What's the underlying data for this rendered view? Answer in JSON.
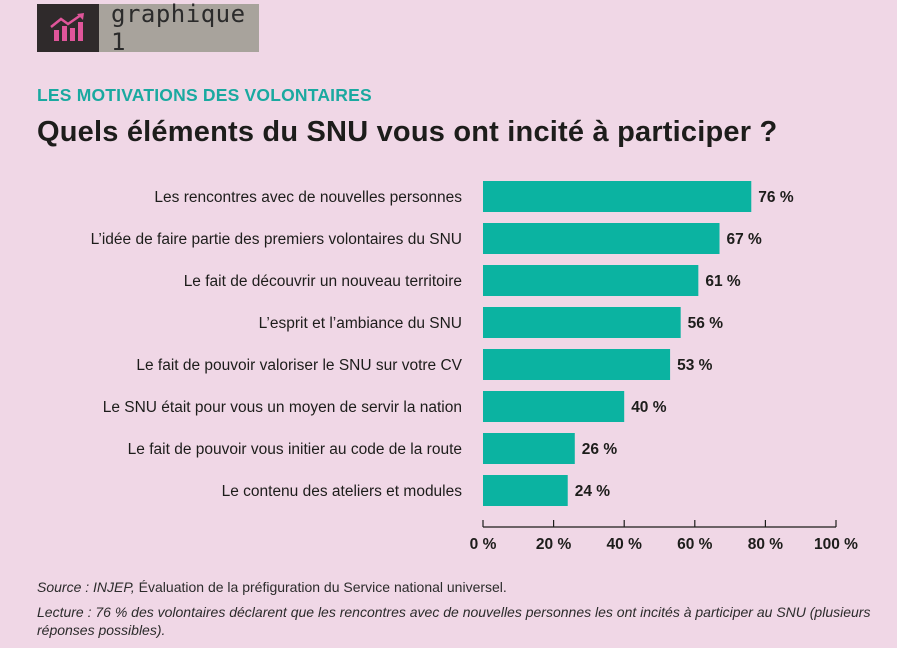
{
  "badge": {
    "label": "graphique 1",
    "icon": "trending-up-bar-chart-icon"
  },
  "subtitle": "LES MOTIVATIONS DES VOLONTAIRES",
  "title": "Quels éléments du SNU vous ont incité à participer ?",
  "chart_data": {
    "type": "bar",
    "orientation": "horizontal",
    "categories": [
      "Les rencontres avec de nouvelles personnes",
      "L’idée de faire partie des premiers volontaires du SNU",
      "Le fait de découvrir un nouveau territoire",
      "L’esprit et l’ambiance du SNU",
      "Le fait de pouvoir valoriser le SNU sur votre CV",
      "Le SNU était pour vous un moyen de servir la nation",
      "Le fait de pouvoir vous initier au code de la route",
      "Le contenu des ateliers et modules"
    ],
    "values": [
      76,
      67,
      61,
      56,
      53,
      40,
      26,
      24
    ],
    "value_labels": [
      "76 %",
      "67 %",
      "61 %",
      "56 %",
      "53 %",
      "40 %",
      "26 %",
      "24 %"
    ],
    "xlim": [
      0,
      100
    ],
    "xticks": [
      0,
      20,
      40,
      60,
      80,
      100
    ],
    "xtick_labels": [
      "0 %",
      "20 %",
      "40 %",
      "60 %",
      "80 %",
      "100 %"
    ],
    "bar_color": "#0bb3a1",
    "grid": false,
    "legend": "none"
  },
  "source": {
    "prefix": "Source : INJEP,",
    "text": " Évaluation de la préfiguration du Service national universel."
  },
  "lecture": "Lecture : 76 % des volontaires déclarent que les rencontres avec de nouvelles personnes les ont incités à participer au SNU (plusieurs réponses possibles)."
}
